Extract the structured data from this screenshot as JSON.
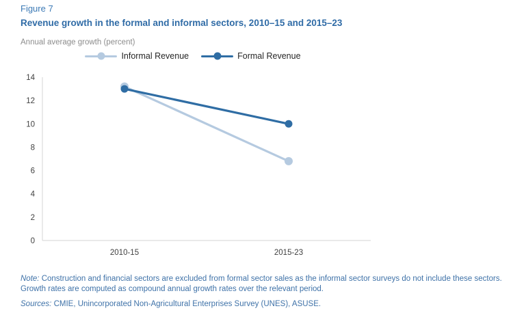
{
  "header": {
    "figure_label": "Figure 7",
    "title": "Revenue growth in the formal and informal sectors, 2010–15 and 2015–23",
    "units_label": "Annual average growth (percent)"
  },
  "chart_data": {
    "type": "line",
    "categories": [
      "2010-15",
      "2015-23"
    ],
    "series": [
      {
        "name": "Informal Revenue",
        "values": [
          13.2,
          6.8
        ],
        "color": "#b5cae0"
      },
      {
        "name": "Formal Revenue",
        "values": [
          13.0,
          10.0
        ],
        "color": "#2f6da4"
      }
    ],
    "title": "",
    "xlabel": "",
    "ylabel": "Annual average growth (percent)",
    "ylim": [
      0,
      14
    ],
    "ytick_step": 2,
    "yticks": [
      0,
      2,
      4,
      6,
      8,
      10,
      12,
      14
    ],
    "grid": false,
    "legend_position": "top-center"
  },
  "footer": {
    "note_prefix": "Note:",
    "note_text": " Construction and financial sectors are excluded from formal sector sales as the informal sector surveys do not include these sectors. Growth rates are computed as compound annual growth rates over the relevant period.",
    "sources_prefix": "Sources:",
    "sources_text": " CMIE, Unincorporated Non-Agricultural Enterprises Survey (UNES), ASUSE."
  },
  "colors": {
    "figure_label": "#3b79b5",
    "title": "#2f6ba6",
    "units_text": "#8c8c8c",
    "note_text": "#3f72a8",
    "axis_line": "#dcdcdc",
    "tick_text": "#404040",
    "legend_text": "#262626",
    "informal_series": "#b5cae0",
    "formal_series": "#2f6da4"
  }
}
